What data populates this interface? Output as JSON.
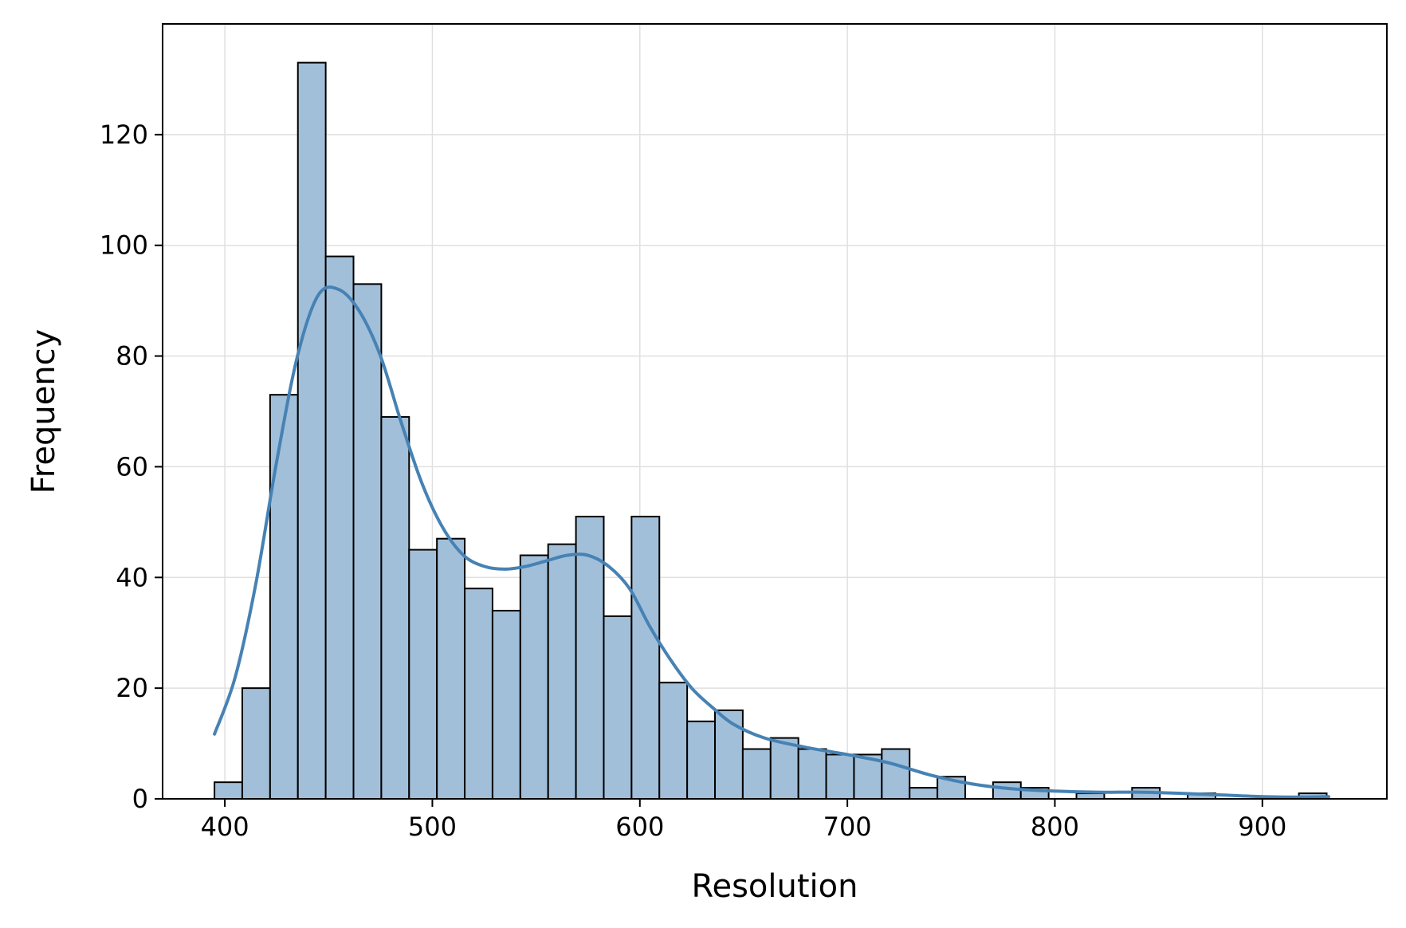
{
  "chart_data": {
    "type": "bar",
    "title": "",
    "xlabel": "Resolution",
    "ylabel": "Frequency",
    "xlim": [
      370,
      960
    ],
    "ylim": [
      0,
      140
    ],
    "xticks": [
      400,
      500,
      600,
      700,
      800,
      900
    ],
    "yticks": [
      0,
      20,
      40,
      60,
      80,
      100,
      120
    ],
    "grid": true,
    "legend": "none",
    "bin_start": 395,
    "bin_width": 13.4,
    "values": [
      3,
      20,
      73,
      133,
      98,
      93,
      69,
      45,
      47,
      38,
      34,
      44,
      46,
      51,
      33,
      51,
      21,
      14,
      16,
      9,
      11,
      9,
      8,
      8,
      9,
      2,
      4,
      0,
      3,
      2,
      0,
      1,
      0,
      2,
      0,
      1,
      0,
      0,
      0,
      1
    ],
    "kde": {
      "x": [
        395,
        405,
        415,
        425,
        435,
        445,
        455,
        465,
        475,
        485,
        495,
        505,
        515,
        525,
        535,
        545,
        555,
        565,
        575,
        585,
        595,
        605,
        615,
        625,
        635,
        645,
        660,
        680,
        700,
        720,
        740,
        760,
        780,
        800,
        820,
        840,
        860,
        880,
        900,
        920,
        932
      ],
      "y": [
        11.7,
        22,
        39,
        61,
        80,
        91,
        92,
        88,
        80,
        68,
        57,
        49,
        44,
        42,
        41.5,
        42,
        43,
        44,
        44,
        42,
        38,
        31,
        25,
        20,
        16.5,
        13.5,
        11,
        9.3,
        8,
        6.5,
        4.3,
        2.7,
        1.8,
        1.4,
        1.2,
        1.2,
        1.0,
        0.7,
        0.4,
        0.3,
        0.4
      ]
    },
    "colors": {
      "bar_fill": "#a2bfd9",
      "bar_edge": "#000000",
      "kde_line": "#4682b4",
      "grid": "#e0e0e0"
    }
  }
}
